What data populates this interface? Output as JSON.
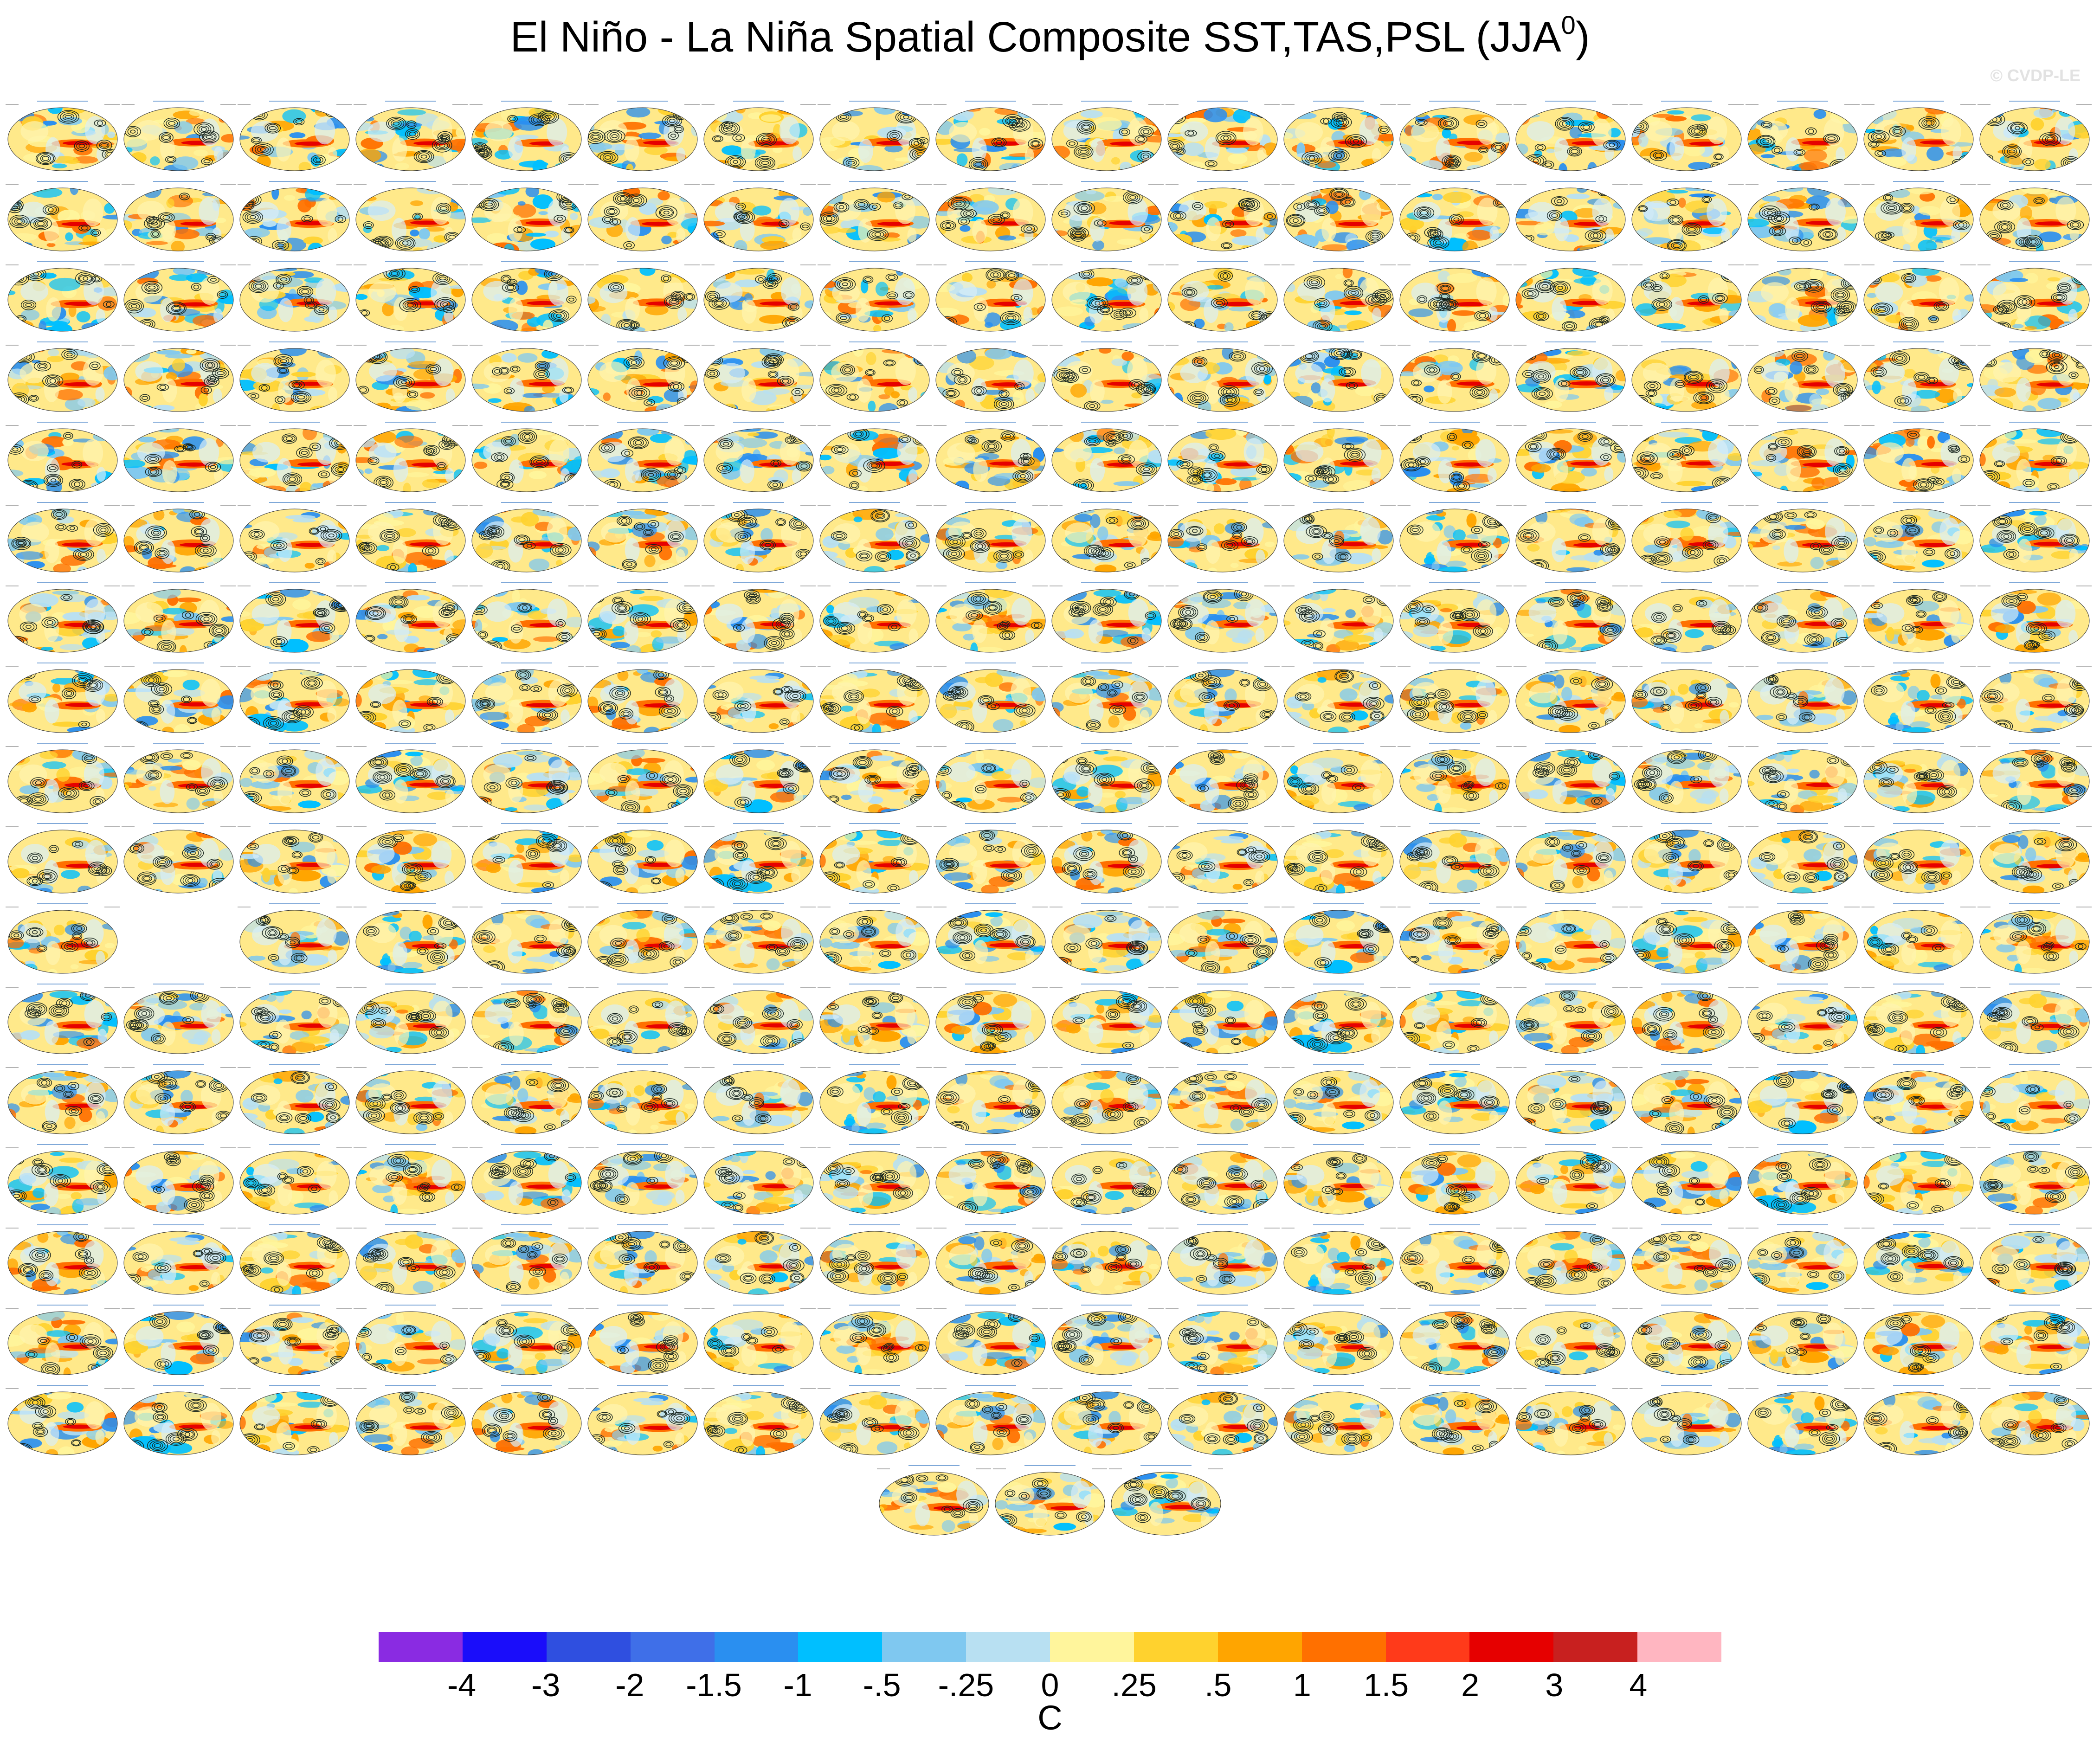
{
  "title": {
    "main": "El Niño - La Niña Spatial Composite SST,TAS,PSL (JJA",
    "sup": "0",
    "close": ")"
  },
  "watermark": "© CVDP-LE",
  "chart_data": {
    "type": "heatmap",
    "title": "El Niño - La Niña Spatial Composite SST,TAS,PSL (JJA0)",
    "panels": {
      "rows": 18,
      "cols": 18,
      "layout": "grid of small global map panels (robinson-like ellipses), SST/TAS shaded, PSL contoured; final centered row of 3",
      "empty_slots": [
        [
          10,
          1
        ],
        [
          12,
          18
        ]
      ]
    },
    "colorbar": {
      "units": "C",
      "tick_labels": [
        "-4",
        "-3",
        "-2",
        "-1.5",
        "-1",
        "-.5",
        "-.25",
        "0",
        ".25",
        ".5",
        "1",
        "1.5",
        "2",
        "3",
        "4"
      ],
      "colors": [
        "#8a2be2",
        "#1a0dfa",
        "#2f4fe0",
        "#3f6fe8",
        "#2a8ff0",
        "#00bfff",
        "#7fc8f0",
        "#b8e0f2",
        "#fff59c",
        "#ffd22e",
        "#ffa500",
        "#ff7000",
        "#ff3a1a",
        "#e60000",
        "#c8201f",
        "#ffb6c1"
      ]
    }
  }
}
